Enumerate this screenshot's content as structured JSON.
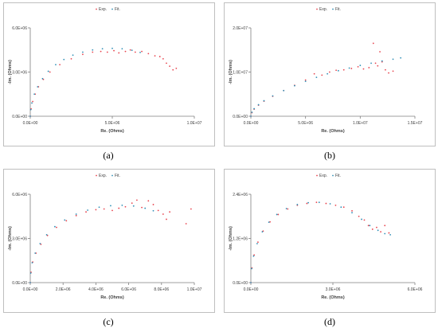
{
  "legend": {
    "exp": "Exp.",
    "fit": "Fit."
  },
  "colors": {
    "exp": "#e8454f",
    "fit": "#2f8fb7",
    "axis": "#7f7f7f",
    "frame": "#bfbfbf"
  },
  "chart_data": [
    {
      "type": "scatter",
      "caption": "(a)",
      "xlabel": "Re. (Ohms)",
      "ylabel": "-Im. (Ohms)",
      "xlim": [
        0,
        10000000
      ],
      "ylim": [
        0,
        6000000
      ],
      "xticks": [
        "0.0E+00",
        "5.0E+06",
        "1.0E+07"
      ],
      "yticks": [
        "0.0E+00",
        "3.0E+06",
        "6.0E+06"
      ],
      "series": [
        {
          "name": "Exp.",
          "points": [
            [
              0,
              0
            ],
            [
              50000,
              500000
            ],
            [
              150000,
              1000000
            ],
            [
              300000,
              1500000
            ],
            [
              500000,
              2000000
            ],
            [
              800000,
              2500000
            ],
            [
              1200000,
              3000000
            ],
            [
              1800000,
              3500000
            ],
            [
              2500000,
              3900000
            ],
            [
              3200000,
              4200000
            ],
            [
              3800000,
              4350000
            ],
            [
              4300000,
              4400000
            ],
            [
              4700000,
              4350000
            ],
            [
              5100000,
              4450000
            ],
            [
              5400000,
              4300000
            ],
            [
              5800000,
              4400000
            ],
            [
              6100000,
              4500000
            ],
            [
              6400000,
              4350000
            ],
            [
              6800000,
              4400000
            ],
            [
              7200000,
              4250000
            ],
            [
              7600000,
              4100000
            ],
            [
              7900000,
              4050000
            ],
            [
              8100000,
              3900000
            ],
            [
              8300000,
              3600000
            ],
            [
              8500000,
              3400000
            ],
            [
              8700000,
              3150000
            ],
            [
              8900000,
              3250000
            ]
          ]
        },
        {
          "name": "Fit.",
          "points": [
            [
              0,
              0
            ],
            [
              30000,
              450000
            ],
            [
              100000,
              900000
            ],
            [
              250000,
              1500000
            ],
            [
              450000,
              2000000
            ],
            [
              750000,
              2550000
            ],
            [
              1100000,
              3050000
            ],
            [
              1550000,
              3500000
            ],
            [
              2050000,
              3850000
            ],
            [
              2600000,
              4150000
            ],
            [
              3200000,
              4350000
            ],
            [
              3800000,
              4500000
            ],
            [
              4400000,
              4580000
            ],
            [
              5000000,
              4610000
            ],
            [
              5600000,
              4580000
            ],
            [
              6200000,
              4480000
            ],
            [
              6700000,
              4330000
            ]
          ]
        }
      ]
    },
    {
      "type": "scatter",
      "caption": "(b)",
      "xlabel": "Re. (Ohms)",
      "ylabel": "-Im. (Ohms)",
      "xlim": [
        0,
        15000000
      ],
      "ylim": [
        0,
        20000000
      ],
      "xticks": [
        "0.0E+00",
        "5.0E+06",
        "1.0E+07",
        "1.5E+07"
      ],
      "yticks": [
        "0.0E+00",
        "1.0E+07",
        "2.0E+07"
      ],
      "series": [
        {
          "name": "Exp.",
          "points": [
            [
              0,
              0
            ],
            [
              100000,
              800000
            ],
            [
              300000,
              1600000
            ],
            [
              700000,
              2500000
            ],
            [
              1200000,
              3400000
            ],
            [
              2000000,
              4500000
            ],
            [
              3000000,
              5800000
            ],
            [
              4000000,
              7000000
            ],
            [
              5000000,
              8200000
            ],
            [
              5800000,
              9600000
            ],
            [
              6500000,
              9300000
            ],
            [
              7200000,
              10000000
            ],
            [
              7800000,
              10400000
            ],
            [
              8500000,
              10500000
            ],
            [
              9200000,
              10800000
            ],
            [
              9800000,
              11200000
            ],
            [
              10300000,
              10700000
            ],
            [
              10800000,
              11000000
            ],
            [
              11200000,
              16500000
            ],
            [
              11400000,
              12000000
            ],
            [
              11600000,
              11400000
            ],
            [
              11800000,
              14600000
            ],
            [
              12000000,
              12300000
            ],
            [
              12300000,
              10500000
            ],
            [
              12600000,
              9800000
            ],
            [
              13000000,
              10200000
            ]
          ]
        },
        {
          "name": "Fit.",
          "points": [
            [
              0,
              0
            ],
            [
              100000,
              900000
            ],
            [
              300000,
              1700000
            ],
            [
              700000,
              2600000
            ],
            [
              1200000,
              3500000
            ],
            [
              2000000,
              4600000
            ],
            [
              3000000,
              5800000
            ],
            [
              4000000,
              6900000
            ],
            [
              5000000,
              7900000
            ],
            [
              6000000,
              8800000
            ],
            [
              7000000,
              9600000
            ],
            [
              8000000,
              10300000
            ],
            [
              9000000,
              10900000
            ],
            [
              10000000,
              11500000
            ],
            [
              11000000,
              12000000
            ],
            [
              12000000,
              12500000
            ],
            [
              13000000,
              12900000
            ],
            [
              13700000,
              13200000
            ]
          ]
        }
      ]
    },
    {
      "type": "scatter",
      "caption": "(c)",
      "xlabel": "Re. (Ohms)",
      "ylabel": "-Im. (Ohms)",
      "xlim": [
        0,
        10000000
      ],
      "ylim": [
        0,
        6000000
      ],
      "xticks": [
        "0.0E+00",
        "2.0E+06",
        "4.0E+06",
        "6.0E+06",
        "8.0E+06",
        "1.0E+07"
      ],
      "yticks": [
        "0.0E+00",
        "3.0E+06",
        "6.0E+06"
      ],
      "series": [
        {
          "name": "Exp.",
          "points": [
            [
              0,
              0
            ],
            [
              50000,
              700000
            ],
            [
              150000,
              1400000
            ],
            [
              350000,
              2000000
            ],
            [
              650000,
              2600000
            ],
            [
              1050000,
              3200000
            ],
            [
              1600000,
              3750000
            ],
            [
              2200000,
              4200000
            ],
            [
              2800000,
              4550000
            ],
            [
              3400000,
              4800000
            ],
            [
              4000000,
              4950000
            ],
            [
              4500000,
              5000000
            ],
            [
              5000000,
              4900000
            ],
            [
              5400000,
              5050000
            ],
            [
              5800000,
              5150000
            ],
            [
              6200000,
              5400000
            ],
            [
              6500000,
              5600000
            ],
            [
              6800000,
              5100000
            ],
            [
              7200000,
              5550000
            ],
            [
              7500000,
              5300000
            ],
            [
              7800000,
              4900000
            ],
            [
              8100000,
              4650000
            ],
            [
              8300000,
              4300000
            ],
            [
              8500000,
              4800000
            ],
            [
              9500000,
              4000000
            ],
            [
              9800000,
              5000000
            ]
          ]
        },
        {
          "name": "Fit.",
          "points": [
            [
              0,
              0
            ],
            [
              30000,
              650000
            ],
            [
              120000,
              1350000
            ],
            [
              300000,
              2000000
            ],
            [
              600000,
              2650000
            ],
            [
              1000000,
              3250000
            ],
            [
              1500000,
              3800000
            ],
            [
              2100000,
              4250000
            ],
            [
              2800000,
              4650000
            ],
            [
              3500000,
              4920000
            ],
            [
              4200000,
              5120000
            ],
            [
              4900000,
              5220000
            ],
            [
              5600000,
              5250000
            ],
            [
              6300000,
              5200000
            ],
            [
              7000000,
              5050000
            ],
            [
              7500000,
              4880000
            ]
          ]
        }
      ]
    },
    {
      "type": "scatter",
      "caption": "(d)",
      "xlabel": "Re. (Ohms)",
      "ylabel": "-Im. (Ohms)",
      "xlim": [
        0,
        6000000
      ],
      "ylim": [
        0,
        2400000
      ],
      "xticks": [
        "0.0E+00",
        "3.0E+06",
        "6.0E+06"
      ],
      "yticks": [
        "0.0E+00",
        "1.2E+06",
        "2.4E+06"
      ],
      "series": [
        {
          "name": "Exp.",
          "points": [
            [
              0,
              0
            ],
            [
              40000,
              400000
            ],
            [
              120000,
              750000
            ],
            [
              260000,
              1100000
            ],
            [
              450000,
              1400000
            ],
            [
              700000,
              1650000
            ],
            [
              1000000,
              1850000
            ],
            [
              1350000,
              2000000
            ],
            [
              1700000,
              2100000
            ],
            [
              2050000,
              2150000
            ],
            [
              2400000,
              2180000
            ],
            [
              2750000,
              2150000
            ],
            [
              3100000,
              2100000
            ],
            [
              3400000,
              2050000
            ],
            [
              3700000,
              1950000
            ],
            [
              3950000,
              1800000
            ],
            [
              4150000,
              1700000
            ],
            [
              4300000,
              1550000
            ],
            [
              4450000,
              1450000
            ],
            [
              4600000,
              1500000
            ],
            [
              4750000,
              1380000
            ],
            [
              4900000,
              1550000
            ],
            [
              5050000,
              1350000
            ]
          ]
        },
        {
          "name": "Fit.",
          "points": [
            [
              0,
              0
            ],
            [
              30000,
              380000
            ],
            [
              100000,
              720000
            ],
            [
              230000,
              1060000
            ],
            [
              420000,
              1380000
            ],
            [
              660000,
              1640000
            ],
            [
              950000,
              1850000
            ],
            [
              1300000,
              2010000
            ],
            [
              1700000,
              2120000
            ],
            [
              2100000,
              2170000
            ],
            [
              2500000,
              2180000
            ],
            [
              2900000,
              2140000
            ],
            [
              3300000,
              2050000
            ],
            [
              3700000,
              1900000
            ],
            [
              4050000,
              1720000
            ],
            [
              4350000,
              1550000
            ],
            [
              4650000,
              1420000
            ],
            [
              4900000,
              1330000
            ],
            [
              5100000,
              1300000
            ]
          ]
        }
      ]
    }
  ]
}
